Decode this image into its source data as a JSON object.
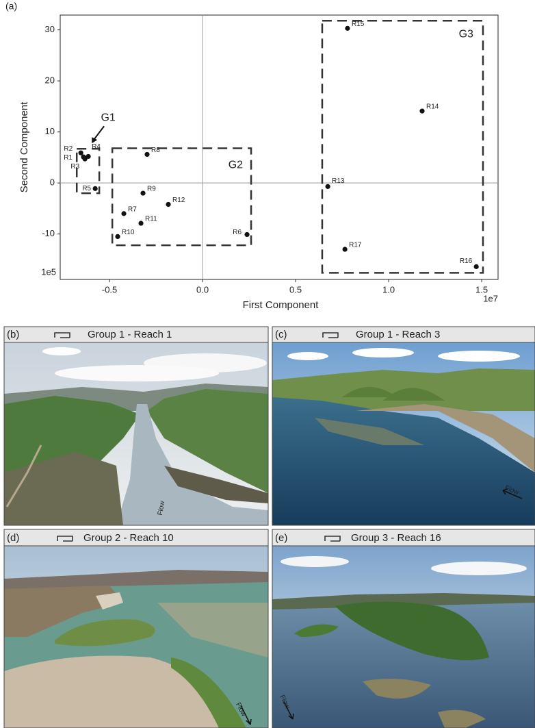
{
  "chart_data": {
    "type": "scatter",
    "panel_label": "(a)",
    "xlabel": "First Component",
    "ylabel": "Second Component",
    "x_offset_label": "1e7",
    "y_offset_label": "1e5",
    "x": [
      -0.64,
      -0.654,
      -0.632,
      -0.614,
      -0.577,
      0.239,
      -0.423,
      -0.298,
      -0.32,
      -0.456,
      -0.331,
      -0.184,
      0.673,
      1.18,
      0.779,
      1.471,
      0.765
    ],
    "values": [
      5.1,
      5.9,
      4.7,
      5.2,
      -1.1,
      -10.1,
      -6.0,
      5.6,
      -2.0,
      -10.5,
      -7.9,
      -4.2,
      -0.7,
      14.1,
      30.3,
      -16.4,
      -13.0
    ],
    "point_labels": [
      "R1",
      "R2",
      "R3",
      "R4",
      "R5",
      "R6",
      "R7",
      "R8",
      "R9",
      "R10",
      "R11",
      "R12",
      "R13",
      "R14",
      "R15",
      "R16",
      "R17"
    ],
    "color": "#111111",
    "xlim": [
      -0.765,
      1.588
    ],
    "ylim": [
      -18.9,
      32.9
    ],
    "xticks": [
      -0.5,
      {
        "value": 0,
        "label": "0.0"
      },
      0.5,
      {
        "value": 1,
        "label": "1.0"
      },
      1.5
    ],
    "yticks": [
      -10,
      0,
      10,
      20,
      30
    ],
    "zero_lines": true,
    "groups": [
      {
        "label": "G1",
        "x": [
          -0.676,
          -0.555
        ],
        "y": [
          -2.0,
          6.7
        ]
      },
      {
        "label": "G2",
        "x": [
          -0.485,
          0.261
        ],
        "y": [
          -12.2,
          6.8
        ]
      },
      {
        "label": "G3",
        "x": [
          0.643,
          1.507
        ],
        "y": [
          -17.6,
          31.8
        ]
      }
    ]
  },
  "panels": [
    {
      "letter": "(b)",
      "title": "Group 1 - Reach 1",
      "flow": "Flow"
    },
    {
      "letter": "(c)",
      "title": "Group 1 - Reach 3",
      "flow": "Flow"
    },
    {
      "letter": "(d)",
      "title": "Group 2 - Reach 10",
      "flow": "Flow"
    },
    {
      "letter": "(e)",
      "title": "Group 3 - Reach 16",
      "flow": "Flow"
    }
  ]
}
